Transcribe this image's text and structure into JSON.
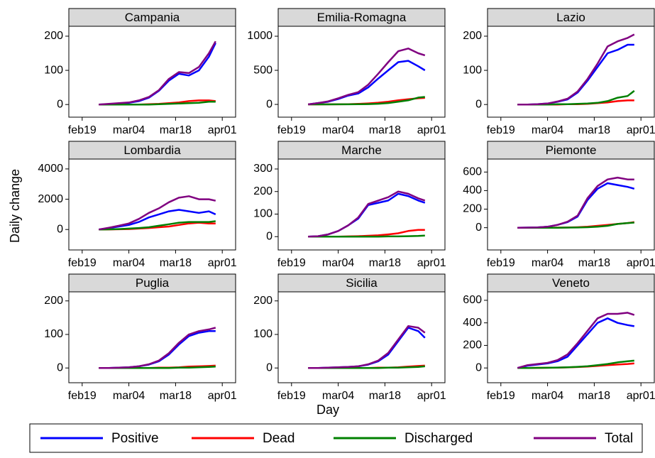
{
  "xlabel": "Day",
  "ylabel": "Daily change",
  "chart_data": [
    {
      "type": "line",
      "title": "Campania",
      "x": [
        "feb24",
        "feb27",
        "mar01",
        "mar04",
        "mar07",
        "mar10",
        "mar13",
        "mar16",
        "mar19",
        "mar22",
        "mar25",
        "mar28",
        "mar30"
      ],
      "xlim": [
        "feb15",
        "apr05"
      ],
      "xticks": [
        "feb19",
        "mar04",
        "mar18",
        "apr01"
      ],
      "ylim": [
        -37,
        229
      ],
      "yticks": [
        0,
        100,
        200
      ],
      "series": [
        {
          "name": "Positive",
          "color": "#0000ff",
          "values": [
            0,
            1,
            3,
            5,
            10,
            20,
            40,
            70,
            90,
            85,
            100,
            140,
            180
          ]
        },
        {
          "name": "Dead",
          "color": "#ff0000",
          "values": [
            0,
            0,
            0,
            0,
            0,
            1,
            2,
            4,
            6,
            10,
            12,
            12,
            10
          ]
        },
        {
          "name": "Discharged",
          "color": "#008000",
          "values": [
            0,
            0,
            0,
            0,
            0,
            0,
            1,
            2,
            3,
            4,
            5,
            8,
            8
          ]
        },
        {
          "name": "Total",
          "color": "#800080",
          "values": [
            0,
            2,
            4,
            6,
            12,
            22,
            42,
            75,
            95,
            92,
            110,
            150,
            185
          ]
        }
      ]
    },
    {
      "type": "line",
      "title": "Emilia-Romagna",
      "x": [
        "feb24",
        "feb27",
        "mar01",
        "mar04",
        "mar07",
        "mar10",
        "mar13",
        "mar16",
        "mar19",
        "mar22",
        "mar25",
        "mar28",
        "mar30"
      ],
      "xlim": [
        "feb15",
        "apr05"
      ],
      "xticks": [
        "feb19",
        "mar04",
        "mar18",
        "apr01"
      ],
      "ylim": [
        -187,
        1146
      ],
      "yticks": [
        0,
        500,
        1000
      ],
      "series": [
        {
          "name": "Positive",
          "color": "#0000ff",
          "values": [
            0,
            20,
            40,
            80,
            130,
            160,
            250,
            380,
            500,
            620,
            640,
            560,
            500
          ]
        },
        {
          "name": "Dead",
          "color": "#ff0000",
          "values": [
            0,
            0,
            1,
            2,
            4,
            8,
            15,
            25,
            40,
            60,
            75,
            90,
            95
          ]
        },
        {
          "name": "Discharged",
          "color": "#008000",
          "values": [
            0,
            0,
            0,
            1,
            2,
            3,
            5,
            10,
            20,
            40,
            60,
            100,
            110
          ]
        },
        {
          "name": "Total",
          "color": "#800080",
          "values": [
            0,
            20,
            45,
            90,
            140,
            180,
            290,
            450,
            620,
            780,
            820,
            750,
            720
          ]
        }
      ]
    },
    {
      "type": "line",
      "title": "Lazio",
      "x": [
        "feb24",
        "feb27",
        "mar01",
        "mar04",
        "mar07",
        "mar10",
        "mar13",
        "mar16",
        "mar19",
        "mar22",
        "mar25",
        "mar28",
        "mar30"
      ],
      "xlim": [
        "feb15",
        "apr05"
      ],
      "xticks": [
        "feb19",
        "mar04",
        "mar18",
        "apr01"
      ],
      "ylim": [
        -37,
        229
      ],
      "yticks": [
        0,
        100,
        200
      ],
      "series": [
        {
          "name": "Positive",
          "color": "#0000ff",
          "values": [
            0,
            0,
            1,
            3,
            8,
            15,
            35,
            70,
            110,
            150,
            160,
            175,
            175
          ]
        },
        {
          "name": "Dead",
          "color": "#ff0000",
          "values": [
            0,
            0,
            0,
            0,
            0,
            1,
            1,
            2,
            4,
            6,
            10,
            12,
            12
          ]
        },
        {
          "name": "Discharged",
          "color": "#008000",
          "values": [
            0,
            0,
            0,
            0,
            1,
            1,
            2,
            3,
            5,
            10,
            20,
            25,
            40
          ]
        },
        {
          "name": "Total",
          "color": "#800080",
          "values": [
            0,
            0,
            1,
            3,
            9,
            17,
            38,
            75,
            120,
            170,
            185,
            195,
            205
          ]
        }
      ]
    },
    {
      "type": "line",
      "title": "Lombardia",
      "x": [
        "feb24",
        "feb27",
        "mar01",
        "mar04",
        "mar07",
        "mar10",
        "mar13",
        "mar16",
        "mar19",
        "mar22",
        "mar25",
        "mar28",
        "mar30"
      ],
      "xlim": [
        "feb15",
        "apr05"
      ],
      "xticks": [
        "feb19",
        "mar04",
        "mar18",
        "apr01"
      ],
      "ylim": [
        -1349,
        4651
      ],
      "yticks": [
        0,
        2000,
        4000
      ],
      "series": [
        {
          "name": "Positive",
          "color": "#0000ff",
          "values": [
            0,
            100,
            200,
            300,
            500,
            800,
            1000,
            1200,
            1300,
            1200,
            1100,
            1200,
            1000
          ]
        },
        {
          "name": "Dead",
          "color": "#ff0000",
          "values": [
            0,
            5,
            15,
            30,
            60,
            100,
            150,
            200,
            300,
            400,
            450,
            400,
            400
          ]
        },
        {
          "name": "Discharged",
          "color": "#008000",
          "values": [
            0,
            10,
            30,
            60,
            100,
            150,
            250,
            350,
            450,
            500,
            500,
            500,
            550
          ]
        },
        {
          "name": "Total",
          "color": "#800080",
          "values": [
            0,
            120,
            250,
            400,
            700,
            1100,
            1400,
            1800,
            2100,
            2200,
            2000,
            2000,
            1900
          ]
        }
      ]
    },
    {
      "type": "line",
      "title": "Marche",
      "x": [
        "feb24",
        "feb27",
        "mar01",
        "mar04",
        "mar07",
        "mar10",
        "mar13",
        "mar16",
        "mar19",
        "mar22",
        "mar25",
        "mar28",
        "mar30"
      ],
      "xlim": [
        "feb15",
        "apr05"
      ],
      "xticks": [
        "feb19",
        "mar04",
        "mar18",
        "apr01"
      ],
      "ylim": [
        -59,
        344
      ],
      "yticks": [
        0,
        100,
        200,
        300
      ],
      "series": [
        {
          "name": "Positive",
          "color": "#0000ff",
          "values": [
            0,
            2,
            10,
            25,
            50,
            80,
            140,
            150,
            160,
            190,
            180,
            160,
            150
          ]
        },
        {
          "name": "Dead",
          "color": "#ff0000",
          "values": [
            0,
            0,
            0,
            0,
            1,
            2,
            4,
            6,
            10,
            15,
            25,
            30,
            30
          ]
        },
        {
          "name": "Discharged",
          "color": "#008000",
          "values": [
            0,
            0,
            0,
            0,
            0,
            0,
            0,
            0,
            1,
            1,
            2,
            3,
            5
          ]
        },
        {
          "name": "Total",
          "color": "#800080",
          "values": [
            0,
            2,
            10,
            25,
            50,
            85,
            145,
            160,
            175,
            200,
            190,
            170,
            160
          ]
        }
      ]
    },
    {
      "type": "line",
      "title": "Piemonte",
      "x": [
        "feb24",
        "feb27",
        "mar01",
        "mar04",
        "mar07",
        "mar10",
        "mar13",
        "mar16",
        "mar19",
        "mar22",
        "mar25",
        "mar28",
        "mar30"
      ],
      "xlim": [
        "feb15",
        "apr05"
      ],
      "xticks": [
        "feb19",
        "mar04",
        "mar18",
        "apr01"
      ],
      "ylim": [
        -240,
        740
      ],
      "yticks": [
        0,
        200,
        400,
        600
      ],
      "series": [
        {
          "name": "Positive",
          "color": "#0000ff",
          "values": [
            0,
            1,
            3,
            10,
            30,
            60,
            120,
            300,
            420,
            480,
            460,
            440,
            420
          ]
        },
        {
          "name": "Dead",
          "color": "#ff0000",
          "values": [
            0,
            0,
            0,
            0,
            1,
            2,
            5,
            10,
            20,
            30,
            40,
            50,
            60
          ]
        },
        {
          "name": "Discharged",
          "color": "#008000",
          "values": [
            0,
            0,
            0,
            0,
            0,
            1,
            2,
            5,
            10,
            20,
            40,
            50,
            55
          ]
        },
        {
          "name": "Total",
          "color": "#800080",
          "values": [
            0,
            1,
            3,
            10,
            30,
            65,
            130,
            320,
            450,
            520,
            540,
            520,
            520
          ]
        }
      ]
    },
    {
      "type": "line",
      "title": "Puglia",
      "x": [
        "feb24",
        "feb27",
        "mar01",
        "mar04",
        "mar07",
        "mar10",
        "mar13",
        "mar16",
        "mar19",
        "mar22",
        "mar25",
        "mar28",
        "mar30"
      ],
      "xlim": [
        "feb15",
        "apr05"
      ],
      "xticks": [
        "feb19",
        "mar04",
        "mar18",
        "apr01"
      ],
      "ylim": [
        -44,
        227
      ],
      "yticks": [
        0,
        100,
        200
      ],
      "series": [
        {
          "name": "Positive",
          "color": "#0000ff",
          "values": [
            0,
            0,
            1,
            2,
            5,
            10,
            20,
            40,
            70,
            95,
            105,
            110,
            110
          ]
        },
        {
          "name": "Dead",
          "color": "#ff0000",
          "values": [
            0,
            0,
            0,
            0,
            0,
            0,
            1,
            1,
            2,
            4,
            5,
            6,
            7
          ]
        },
        {
          "name": "Discharged",
          "color": "#008000",
          "values": [
            0,
            0,
            0,
            0,
            0,
            0,
            0,
            0,
            1,
            1,
            2,
            3,
            4
          ]
        },
        {
          "name": "Total",
          "color": "#800080",
          "values": [
            0,
            0,
            1,
            2,
            5,
            11,
            22,
            44,
            75,
            100,
            110,
            115,
            120
          ]
        }
      ]
    },
    {
      "type": "line",
      "title": "Sicilia",
      "x": [
        "feb24",
        "feb27",
        "mar01",
        "mar04",
        "mar07",
        "mar10",
        "mar13",
        "mar16",
        "mar19",
        "mar22",
        "mar25",
        "mar28",
        "mar30"
      ],
      "xlim": [
        "feb15",
        "apr05"
      ],
      "xticks": [
        "feb19",
        "mar04",
        "mar18",
        "apr01"
      ],
      "ylim": [
        -44,
        227
      ],
      "yticks": [
        0,
        100,
        200
      ],
      "series": [
        {
          "name": "Positive",
          "color": "#0000ff",
          "values": [
            0,
            0,
            1,
            2,
            3,
            5,
            10,
            20,
            40,
            80,
            120,
            110,
            90
          ]
        },
        {
          "name": "Dead",
          "color": "#ff0000",
          "values": [
            0,
            0,
            0,
            0,
            0,
            0,
            0,
            1,
            1,
            2,
            4,
            6,
            7
          ]
        },
        {
          "name": "Discharged",
          "color": "#008000",
          "values": [
            0,
            0,
            0,
            0,
            0,
            0,
            0,
            0,
            1,
            1,
            2,
            3,
            5
          ]
        },
        {
          "name": "Total",
          "color": "#800080",
          "values": [
            0,
            0,
            1,
            2,
            3,
            5,
            11,
            22,
            45,
            85,
            125,
            120,
            105
          ]
        }
      ]
    },
    {
      "type": "line",
      "title": "Veneto",
      "x": [
        "feb24",
        "feb27",
        "mar01",
        "mar04",
        "mar07",
        "mar10",
        "mar13",
        "mar16",
        "mar19",
        "mar22",
        "mar25",
        "mar28",
        "mar30"
      ],
      "xlim": [
        "feb15",
        "apr05"
      ],
      "xticks": [
        "feb19",
        "mar04",
        "mar18",
        "apr01"
      ],
      "ylim": [
        -131,
        675
      ],
      "yticks": [
        0,
        200,
        400,
        600
      ],
      "series": [
        {
          "name": "Positive",
          "color": "#0000ff",
          "values": [
            0,
            20,
            30,
            40,
            60,
            100,
            200,
            300,
            400,
            440,
            400,
            380,
            370
          ]
        },
        {
          "name": "Dead",
          "color": "#ff0000",
          "values": [
            0,
            0,
            1,
            2,
            3,
            5,
            8,
            12,
            18,
            25,
            30,
            35,
            40
          ]
        },
        {
          "name": "Discharged",
          "color": "#008000",
          "values": [
            0,
            0,
            1,
            2,
            4,
            6,
            10,
            15,
            25,
            35,
            50,
            60,
            65
          ]
        },
        {
          "name": "Total",
          "color": "#800080",
          "values": [
            0,
            25,
            35,
            45,
            70,
            120,
            220,
            330,
            440,
            480,
            480,
            490,
            470
          ]
        }
      ]
    }
  ]
}
